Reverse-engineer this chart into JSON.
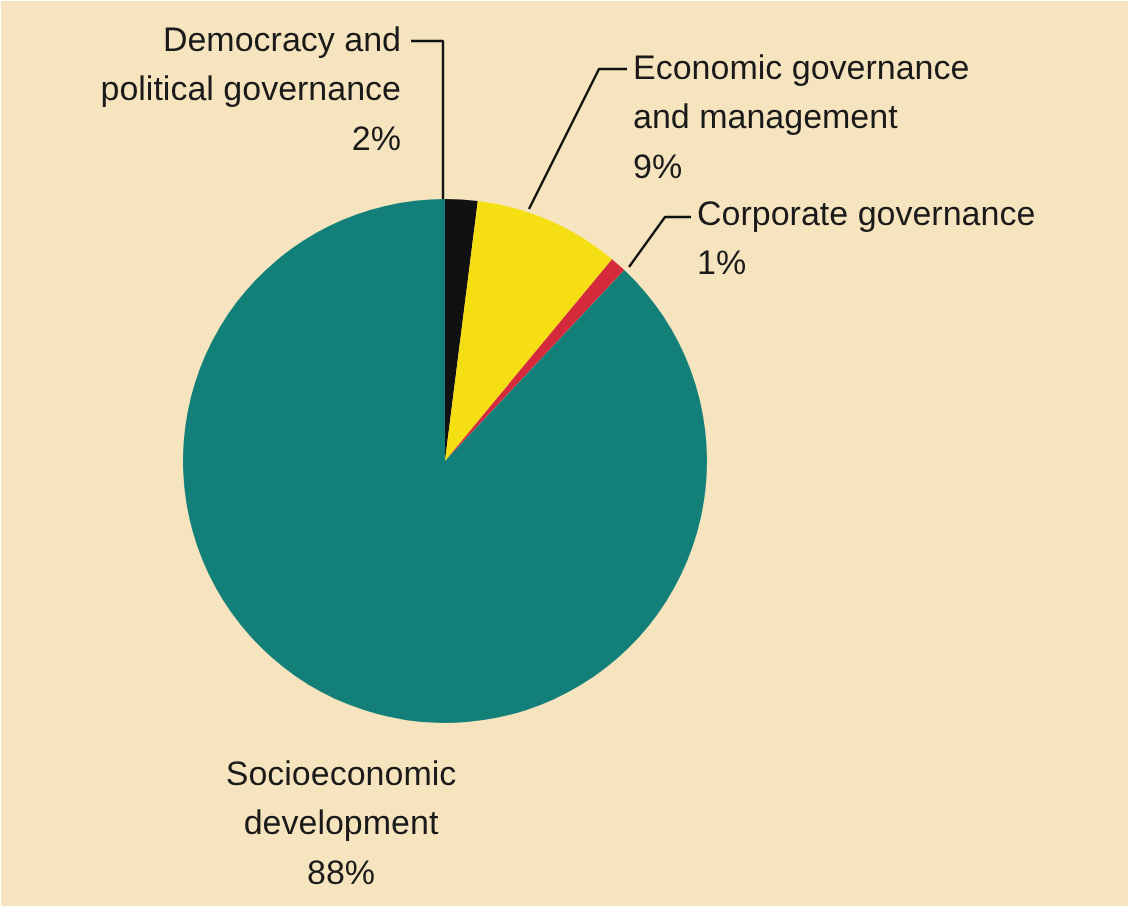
{
  "chart_data": {
    "type": "pie",
    "categories": [
      "Democracy and political governance",
      "Economic governance and management",
      "Corporate governance",
      "Socioeconomic development"
    ],
    "values": [
      2,
      9,
      1,
      88
    ],
    "colors": [
      "#111111",
      "#f5df12",
      "#d42a3c",
      "#137f79"
    ],
    "value_labels": [
      "2%",
      "9%",
      "1%",
      "88%"
    ]
  }
}
